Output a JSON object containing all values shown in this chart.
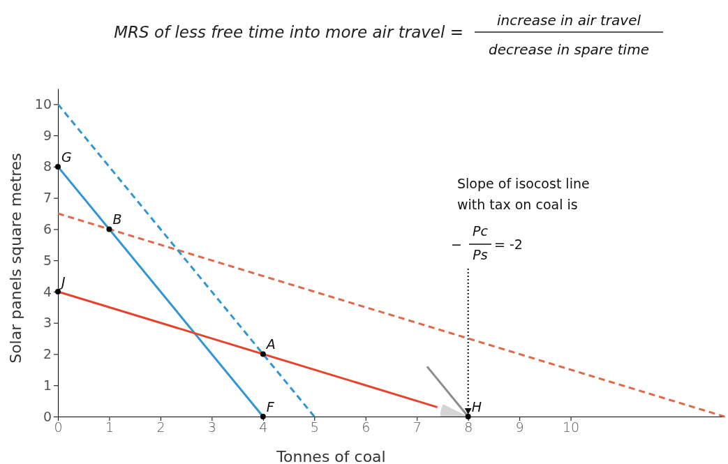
{
  "chart_data": {
    "type": "line",
    "title": "MRS of less free time into more air travel =",
    "xlabel": "Tonnes of coal",
    "ylabel": "Solar panels square metres",
    "xlim": [
      0,
      13
    ],
    "ylim": [
      0,
      10.5
    ],
    "xticks": [
      0,
      1,
      2,
      3,
      4,
      5,
      6,
      7,
      8,
      9,
      10
    ],
    "yticks": [
      0,
      1,
      2,
      3,
      4,
      5,
      6,
      7,
      8,
      9,
      10
    ],
    "series": [
      {
        "color": "#e0694a",
        "line_style": "dashed",
        "x": [
          0,
          13
        ],
        "values": [
          6.5,
          0
        ]
      },
      {
        "color": "#3096d3",
        "line_style": "dashed",
        "x": [
          0,
          5
        ],
        "values": [
          10,
          0
        ]
      },
      {
        "color": "#3096d3",
        "line_style": "solid",
        "x": [
          0,
          4
        ],
        "values": [
          8,
          0
        ]
      },
      {
        "color": "#e5432a",
        "line_style": "solid",
        "x": [
          0,
          7.4
        ],
        "values": [
          4,
          0.3
        ]
      },
      {
        "color": "#8c8c8c",
        "line_style": "solid",
        "x": [
          7.2,
          8
        ],
        "values": [
          1.6,
          0
        ]
      },
      {
        "type": "scatter",
        "color": "#000000",
        "marker": "circle",
        "x": [
          0,
          1,
          0,
          4,
          4,
          8
        ],
        "values": [
          8,
          6,
          4,
          2,
          0,
          0
        ]
      }
    ],
    "annotations": [
      {
        "text": "G",
        "x": 0,
        "y": 8
      },
      {
        "text": "B",
        "x": 1,
        "y": 6
      },
      {
        "text": "J",
        "x": 0,
        "y": 4
      },
      {
        "text": "A",
        "x": 4,
        "y": 2
      },
      {
        "text": "F",
        "x": 4,
        "y": 0
      },
      {
        "text": "H",
        "x": 8,
        "y": 0
      },
      "increase in air travel",
      "decrease in spare time",
      "Slope of isocost line with tax on coal is",
      "−",
      "Pc",
      "Ps",
      "= -2"
    ],
    "grid": false
  }
}
